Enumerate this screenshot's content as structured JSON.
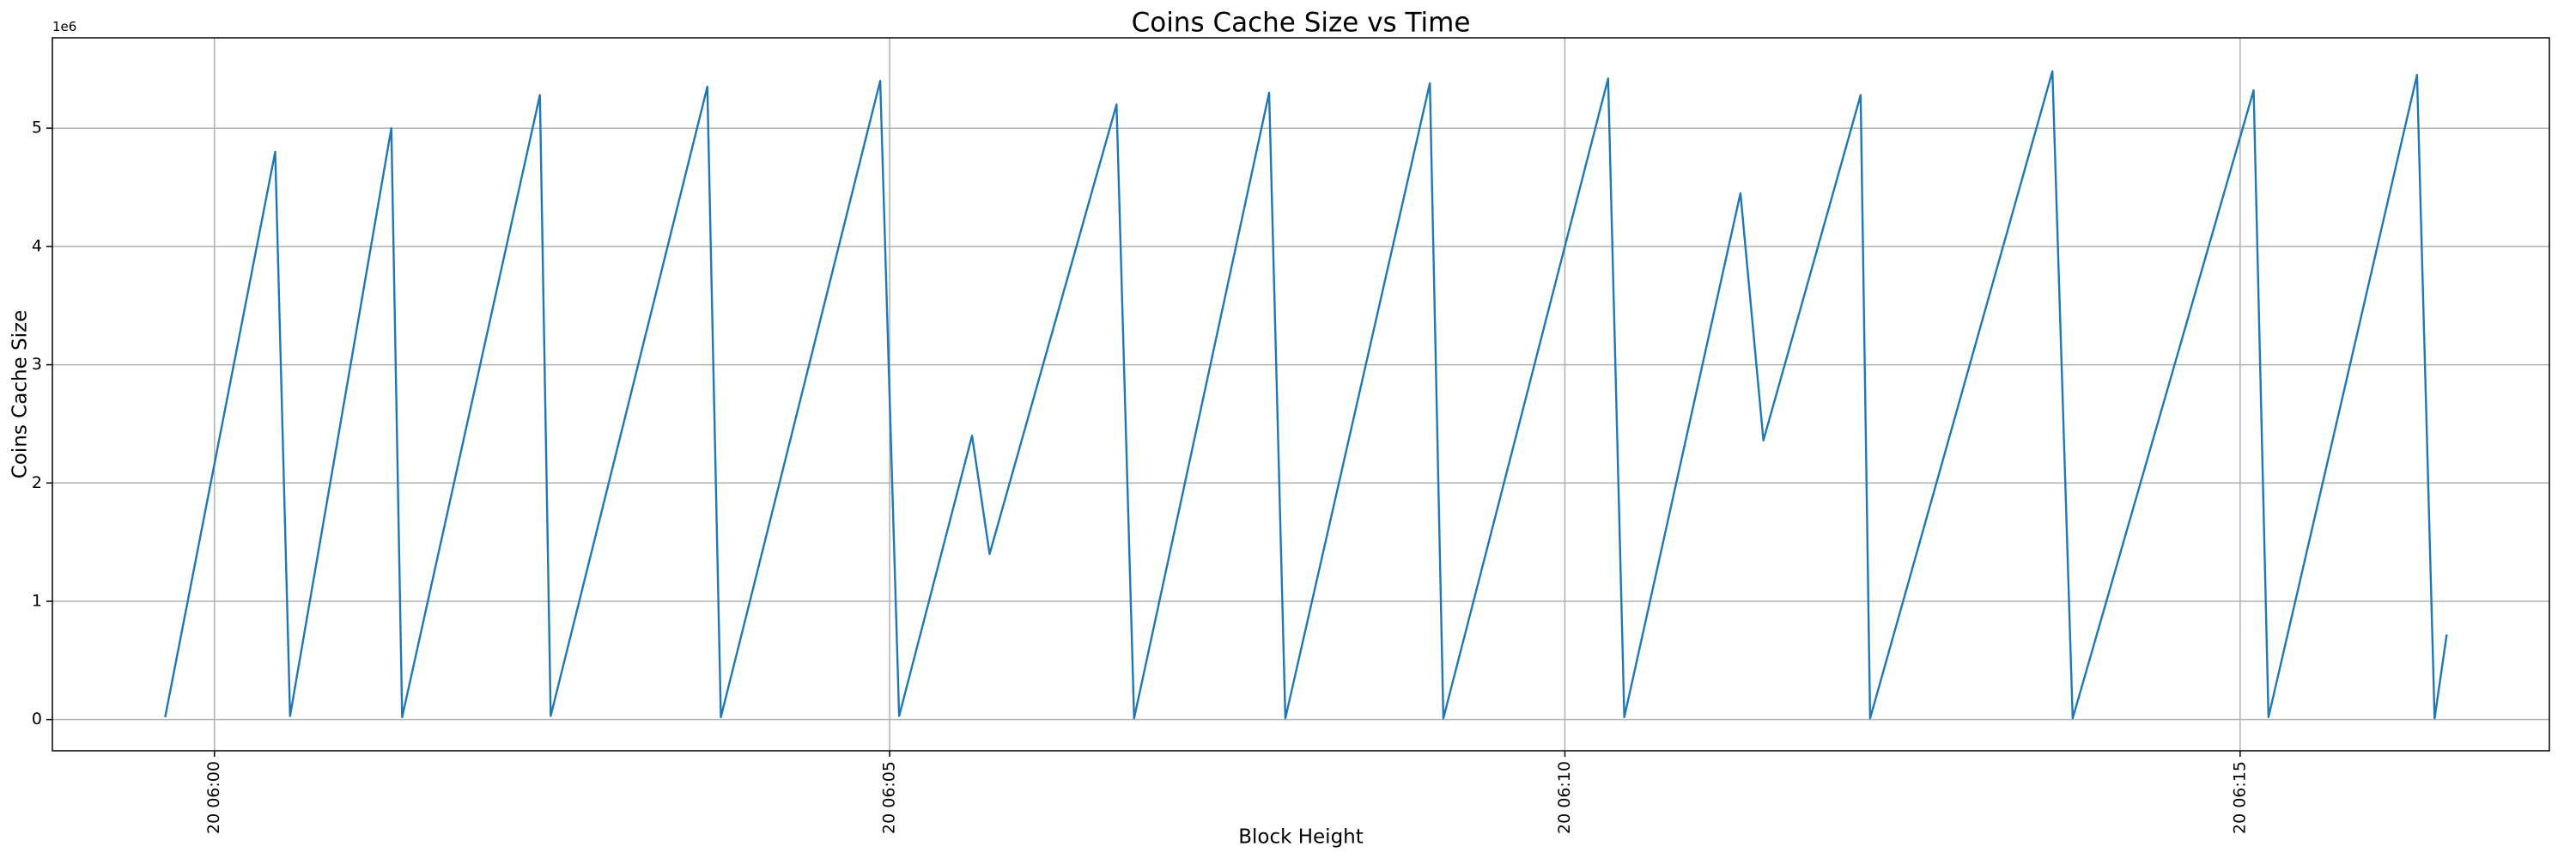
{
  "chart_data": {
    "type": "line",
    "title": "Coins Cache Size vs Time",
    "x_label": "Block Height",
    "y_label": "Coins Cache Size",
    "y_offset_text": "1e6",
    "x": [
      -0.365,
      0.45,
      0.56,
      1.31,
      1.39,
      2.41,
      2.49,
      3.65,
      3.75,
      4.93,
      5.07,
      5.61,
      5.74,
      6.68,
      6.81,
      7.81,
      7.93,
      9.0,
      9.1,
      10.32,
      10.44,
      11.3,
      11.47,
      12.19,
      12.26,
      13.61,
      13.76,
      15.1,
      15.21,
      16.31,
      16.44,
      16.53
    ],
    "series": [
      {
        "name": "Coins Cache Size",
        "color": "#1f77b4",
        "values": [
          0.02,
          4.8,
          0.03,
          5.0,
          0.02,
          5.28,
          0.03,
          5.35,
          0.02,
          5.4,
          0.03,
          2.4,
          1.4,
          5.2,
          0.01,
          5.3,
          0.01,
          5.38,
          0.01,
          5.42,
          0.02,
          4.45,
          2.36,
          5.28,
          0.01,
          5.48,
          0.01,
          5.32,
          0.02,
          5.45,
          0.01,
          0.72
        ]
      }
    ],
    "xlim": [
      -1.2,
      17.29
    ],
    "xticks": [
      {
        "value": 0,
        "label": "20 06:00"
      },
      {
        "value": 5,
        "label": "20 06:05"
      },
      {
        "value": 10,
        "label": "20 06:10"
      },
      {
        "value": 15,
        "label": "20 06:15"
      }
    ],
    "ylim": [
      -0.264,
      5.764
    ],
    "yticks": [
      0,
      1,
      2,
      3,
      4,
      5
    ],
    "grid": true
  }
}
